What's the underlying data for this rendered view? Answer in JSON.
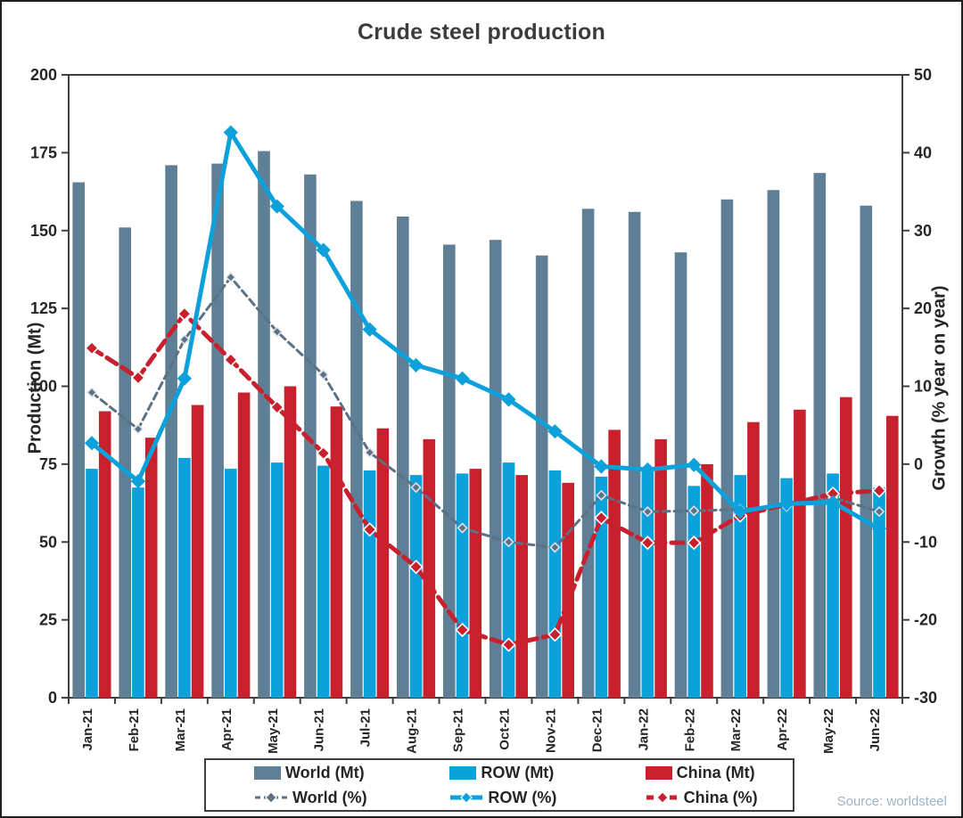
{
  "title": "Crude steel production",
  "source": "Source: worldsteel",
  "colors": {
    "world": "#5E7F96",
    "row": "#0DA1DB",
    "china": "#C9202E",
    "world_line": "#5C7183",
    "frame": "#3F3F3F",
    "tick_text": "#262626",
    "title_text": "#3B3B3B",
    "source_text": "#9DB3C7",
    "background": "#FFFFFF"
  },
  "legend": {
    "items": [
      {
        "label": "World (Mt)",
        "glyph": "bar",
        "color_key": "world"
      },
      {
        "label": "ROW (Mt)",
        "glyph": "bar",
        "color_key": "row"
      },
      {
        "label": "China (Mt)",
        "glyph": "bar",
        "color_key": "china"
      },
      {
        "label": "World (%)",
        "glyph": "line",
        "color_key": "world_line"
      },
      {
        "label": "ROW (%)",
        "glyph": "line",
        "color_key": "row"
      },
      {
        "label": "China (%)",
        "glyph": "line",
        "color_key": "china"
      }
    ]
  },
  "chart_data": {
    "type": "bar+line combo",
    "title": "Crude steel production",
    "categories": [
      "Jan-21",
      "Feb-21",
      "Mar-21",
      "Apr-21",
      "May-21",
      "Jun-21",
      "Jul-21",
      "Aug-21",
      "Sep-21",
      "Oct-21",
      "Nov-21",
      "Dec-21",
      "Jan-22",
      "Feb-22",
      "Mar-22",
      "Apr-22",
      "May-22",
      "Jun-22"
    ],
    "bar_series": [
      {
        "name": "World (Mt)",
        "axis": "left",
        "color_key": "world",
        "values": [
          165.5,
          151,
          171,
          171.5,
          175.5,
          168,
          159.5,
          154.5,
          145.5,
          147,
          142,
          157,
          156,
          143,
          160,
          163,
          168.5,
          158
        ]
      },
      {
        "name": "ROW (Mt)",
        "axis": "left",
        "color_key": "row",
        "values": [
          73.5,
          67.5,
          77,
          73.5,
          75.5,
          74.5,
          73,
          71.5,
          72,
          75.5,
          73,
          71,
          73,
          68,
          71.5,
          70.5,
          72,
          67.5
        ]
      },
      {
        "name": "China (Mt)",
        "axis": "left",
        "color_key": "china",
        "values": [
          92,
          83.5,
          94,
          98,
          100,
          93.5,
          86.5,
          83,
          73.5,
          71.5,
          69,
          86,
          83,
          75,
          88.5,
          92.5,
          96.5,
          90.5
        ]
      }
    ],
    "line_series": [
      {
        "name": "World (%)",
        "axis": "right",
        "color_key": "world_line",
        "width": 3,
        "dash": "8 5",
        "marker_r": 5,
        "marker_stroke": "#DDE3E8",
        "values": [
          9.2,
          4.5,
          16,
          24,
          17,
          11.5,
          1.5,
          -3,
          -8.2,
          -10,
          -10.7,
          -4,
          -6.1,
          -6,
          -5.8,
          -5.3,
          -4.3,
          -6.1
        ]
      },
      {
        "name": "China (%)",
        "axis": "right",
        "color_key": "china",
        "width": 5,
        "dash": "13 7",
        "marker_r": 7,
        "marker_stroke": "#FFFFFF",
        "values": [
          14.9,
          11.1,
          19.3,
          13.4,
          7.3,
          1.4,
          -8.4,
          -13.2,
          -21.3,
          -23.2,
          -21.9,
          -6.9,
          -10.1,
          -10.1,
          -6.6,
          -5.2,
          -3.8,
          -3.4
        ]
      },
      {
        "name": "ROW (%)",
        "axis": "right",
        "color_key": "row",
        "width": 5,
        "dash": "",
        "marker_r": 7,
        "marker_stroke": "#0DA1DB",
        "values": [
          2.7,
          -2.2,
          11,
          42.6,
          33.1,
          27.5,
          17.3,
          12.7,
          11,
          8.3,
          4.2,
          -0.3,
          -0.7,
          -0.1,
          -6.1,
          -5.1,
          -4.9,
          -8.3
        ]
      }
    ],
    "left_axis": {
      "label": "Production (Mt)",
      "min": 0,
      "max": 200,
      "ticks": [
        200,
        175,
        150,
        125,
        100,
        75,
        50,
        25,
        0
      ]
    },
    "right_axis": {
      "label": "Growth (% year on year)",
      "min": -30,
      "max": 50,
      "ticks": [
        50,
        40,
        30,
        20,
        10,
        0,
        -10,
        -20,
        -30
      ]
    },
    "grid": false,
    "legend_position": "bottom"
  }
}
